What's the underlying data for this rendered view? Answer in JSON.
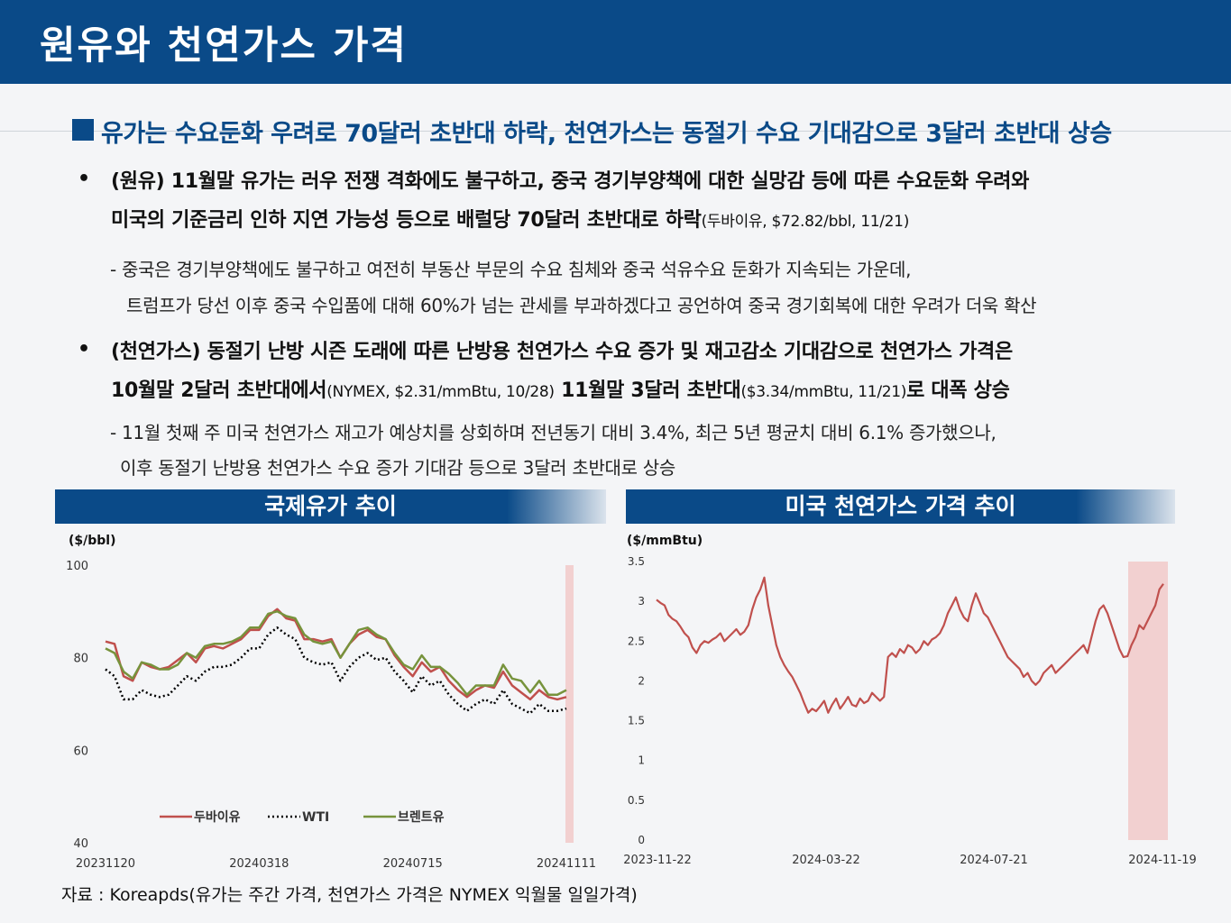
{
  "header": {
    "title": "원유와 천연가스 가격"
  },
  "lead": "유가는 수요둔화 우려로 70달러 초반대 하락, 천연가스는 동절기 수요 기대감으로 3달러 초반대 상승",
  "bullets": {
    "oil": {
      "line1": "(원유) 11월말 유가는 러우 전쟁 격화에도 불구하고, 중국 경기부양책에 대한 실망감 등에 따른 수요둔화 우려와",
      "line2": "미국의 기준금리 인하 지연 가능성 등으로 배럴당 70달러 초반대로 하락",
      "line2_note": "(두바이유, $72.82/bbl, 11/21)",
      "sub1": "- 중국은 경기부양책에도 불구하고 여전히 부동산 부문의 수요 침체와 중국 석유수요 둔화가 지속되는 가운데,",
      "sub2": "트럼프가 당선 이후 중국 수입품에 대해 60%가 넘는 관세를 부과하겠다고 공언하여 중국 경기회복에 대한 우려가 더욱 확산"
    },
    "gas": {
      "line1": "(천연가스) 동절기 난방 시즌 도래에 따른 난방용 천연가스 수요 증가 및 재고감소 기대감으로 천연가스 가격은",
      "line2a": "10월말 2달러 초반대에서",
      "line2a_note": "(NYMEX, $2.31/mmBtu, 10/28)",
      "line2b": " 11월말 3달러 초반대",
      "line2b_note": "($3.34/mmBtu, 11/21)",
      "line2c": "로 대폭 상승",
      "sub1": "- 11월 첫째 주 미국 천연가스 재고가 예상치를 상회하며 전년동기 대비 3.4%, 최근 5년 평균치 대비 6.1% 증가했으나,",
      "sub2": "이후 동절기 난방용 천연가스 수요 증가 기대감 등으로 3달러 초반대로 상승"
    }
  },
  "source": "자료 : Koreapds(유가는 주간 가격, 천연가스 가격은 NYMEX 익월물 일일가격)",
  "colors": {
    "brand": "#0a4a88",
    "dubai": "#c0504d",
    "wti": "#000000",
    "brent": "#77933c",
    "highlight": "#f2d0d0"
  },
  "chart_data": [
    {
      "type": "line",
      "title": "국제유가 추이",
      "ylabel": "($/bbl)",
      "ylim": [
        40,
        100
      ],
      "yticks": [
        "100",
        "80",
        "60",
        "40"
      ],
      "xticks": [
        "20231120",
        "20240318",
        "20240715",
        "20241111"
      ],
      "highlight_from_index": 51,
      "legend": "bottom-left",
      "series": [
        {
          "name": "두바이유",
          "values": [
            83.5,
            83,
            76,
            75,
            79,
            78,
            77.5,
            78,
            79.5,
            81,
            79,
            82,
            82.5,
            82,
            83,
            84,
            86,
            86,
            89,
            90.5,
            88.5,
            88,
            84,
            84,
            83.5,
            84,
            80,
            83,
            85,
            86,
            84.5,
            84,
            80.5,
            78,
            76,
            79,
            77,
            78,
            75,
            73,
            71.5,
            73,
            74,
            73.5,
            77,
            74,
            72.5,
            71,
            73,
            71.5,
            71,
            71.5
          ]
        },
        {
          "name": "WTI",
          "values": [
            77.5,
            76,
            71,
            71,
            73,
            72,
            71.5,
            72,
            74,
            76,
            75,
            77,
            78,
            78,
            78.5,
            80,
            82,
            82,
            85,
            86.5,
            85,
            84,
            80,
            79,
            78.5,
            79,
            75,
            78,
            80,
            81,
            79.5,
            80,
            77,
            75,
            72.5,
            76,
            74,
            75,
            72,
            70,
            68.5,
            70,
            71,
            70,
            73,
            70,
            69,
            68,
            70,
            68.5,
            68.5,
            69
          ]
        },
        {
          "name": "브렌트유",
          "values": [
            82,
            81,
            77,
            75.5,
            79,
            78.5,
            77.5,
            77.5,
            78.5,
            81,
            80,
            82.5,
            83,
            83,
            83.5,
            84.5,
            86.5,
            86.5,
            89.5,
            90,
            89,
            88.5,
            85,
            83.5,
            83,
            83.5,
            80,
            83,
            86,
            86.5,
            85,
            84,
            81,
            78.5,
            77.5,
            80.5,
            78,
            78,
            76.5,
            74.5,
            72,
            74,
            74,
            74,
            78.5,
            75.5,
            75,
            72.5,
            75,
            72,
            72,
            73
          ]
        }
      ]
    },
    {
      "type": "line",
      "title": "미국 천연가스 가격 추이",
      "ylabel": "($/mmBtu)",
      "ylim": [
        0,
        3.5
      ],
      "yticks": [
        "3.5",
        "3",
        "2.5",
        "2",
        "1.5",
        "1",
        "0.5",
        "0"
      ],
      "xticks": [
        "2023-11-22",
        "2024-03-22",
        "2024-07-21",
        "2024-11-19"
      ],
      "highlight_from": "2024-10-28",
      "series": [
        {
          "name": "NYMEX",
          "values": [
            3.02,
            2.98,
            2.95,
            2.83,
            2.78,
            2.75,
            2.68,
            2.6,
            2.55,
            2.42,
            2.35,
            2.45,
            2.5,
            2.48,
            2.52,
            2.55,
            2.6,
            2.5,
            2.55,
            2.6,
            2.65,
            2.58,
            2.62,
            2.7,
            2.9,
            3.05,
            3.15,
            3.3,
            2.95,
            2.7,
            2.45,
            2.3,
            2.2,
            2.12,
            2.05,
            1.95,
            1.85,
            1.72,
            1.6,
            1.65,
            1.62,
            1.68,
            1.75,
            1.6,
            1.7,
            1.78,
            1.65,
            1.72,
            1.8,
            1.7,
            1.68,
            1.78,
            1.72,
            1.75,
            1.85,
            1.8,
            1.75,
            1.8,
            2.3,
            2.35,
            2.3,
            2.4,
            2.35,
            2.45,
            2.42,
            2.35,
            2.4,
            2.5,
            2.45,
            2.52,
            2.55,
            2.6,
            2.7,
            2.85,
            2.95,
            3.05,
            2.9,
            2.8,
            2.75,
            2.95,
            3.1,
            2.98,
            2.85,
            2.8,
            2.7,
            2.6,
            2.5,
            2.4,
            2.3,
            2.25,
            2.2,
            2.15,
            2.05,
            2.1,
            2.0,
            1.95,
            2.0,
            2.1,
            2.15,
            2.2,
            2.1,
            2.15,
            2.2,
            2.25,
            2.3,
            2.35,
            2.4,
            2.45,
            2.35,
            2.55,
            2.75,
            2.9,
            2.95,
            2.85,
            2.7,
            2.55,
            2.4,
            2.3,
            2.31,
            2.45,
            2.55,
            2.7,
            2.65,
            2.75,
            2.85,
            2.95,
            3.15,
            3.22
          ]
        }
      ]
    }
  ]
}
